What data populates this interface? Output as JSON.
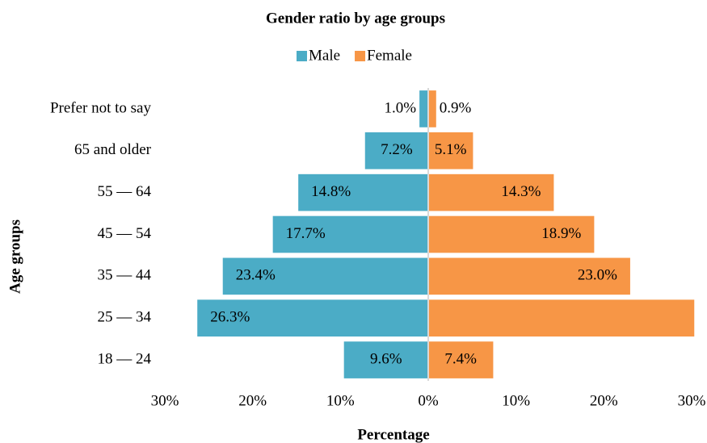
{
  "chart_data": {
    "type": "pyramid",
    "title": "Gender ratio by age groups",
    "x_label": "Percentage",
    "y_label": "Age groups",
    "categories": [
      "Prefer not to say",
      "65 and older",
      "55 — 64",
      "45 — 54",
      "35 — 44",
      "25 — 34",
      "18 — 24"
    ],
    "series": [
      {
        "name": "Male",
        "color": "#4bacc6",
        "side": "left",
        "values": [
          1.0,
          7.2,
          14.8,
          17.7,
          23.4,
          26.3,
          9.6
        ],
        "value_labels": [
          "1.0%",
          "7.2%",
          "14.8%",
          "17.7%",
          "23.4%",
          "26.3%",
          "9.6%"
        ]
      },
      {
        "name": "Female",
        "color": "#f79646",
        "side": "right",
        "values": [
          0.9,
          5.1,
          14.3,
          18.9,
          23.0,
          30.3,
          7.4
        ],
        "value_labels": [
          "0.9%",
          "5.1%",
          "14.3%",
          "18.9%",
          "23.0%",
          null,
          "7.4%"
        ]
      }
    ],
    "xlim": [
      -30,
      30
    ],
    "xticks": [
      {
        "value": -30,
        "label": "30%"
      },
      {
        "value": -20,
        "label": "20%"
      },
      {
        "value": -10,
        "label": "10%"
      },
      {
        "value": 0,
        "label": "0%"
      },
      {
        "value": 10,
        "label": "10%"
      },
      {
        "value": 20,
        "label": "20%"
      },
      {
        "value": 30,
        "label": "30%"
      }
    ],
    "legend": "top"
  }
}
